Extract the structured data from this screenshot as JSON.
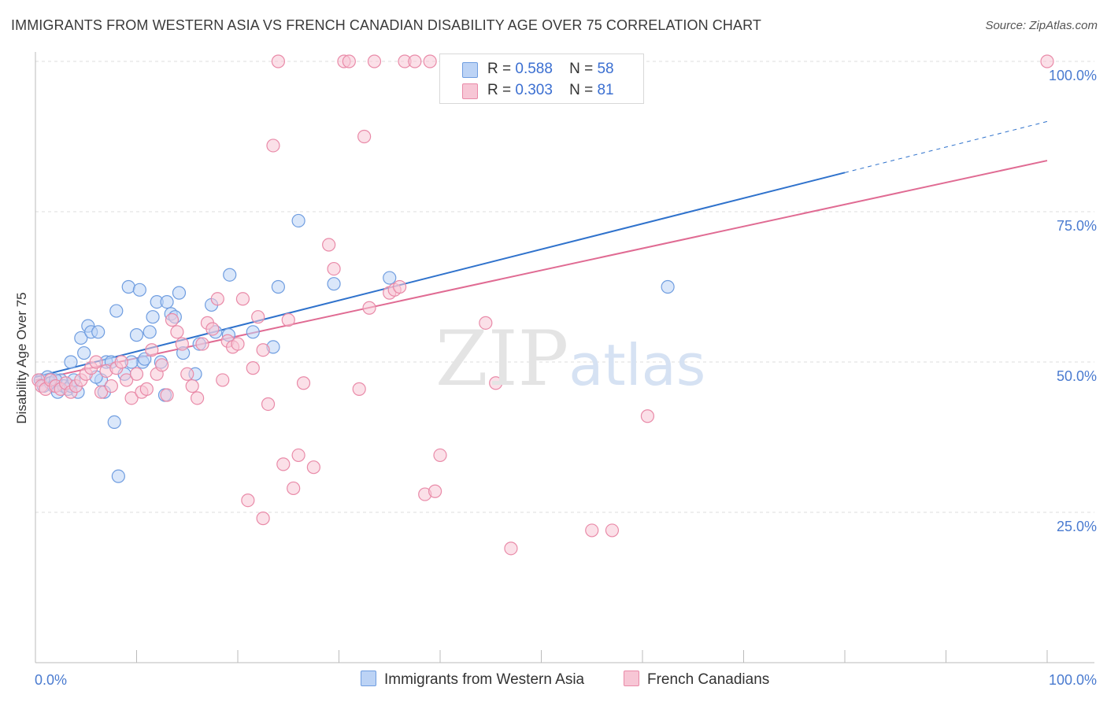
{
  "title": "IMMIGRANTS FROM WESTERN ASIA VS FRENCH CANADIAN DISABILITY AGE OVER 75 CORRELATION CHART",
  "source": "Source: ZipAtlas.com",
  "watermark": {
    "zip": "ZIP",
    "atlas": "atlas"
  },
  "colors": {
    "blue": "#6f9de0",
    "blue_fill": "#bcd3f5",
    "blue_line": "#2f72cc",
    "pink": "#e98aa8",
    "pink_fill": "#f7c6d5",
    "pink_line": "#e06b93",
    "tick_label": "#4a7bd0"
  },
  "legend": {
    "rows": [
      {
        "r_label": "R =",
        "r_value": "0.588",
        "n_label": "N =",
        "n_value": "58"
      },
      {
        "r_label": "R =",
        "r_value": "0.303",
        "n_label": "N =",
        "n_value": "81"
      }
    ]
  },
  "bottom_legend": [
    "Immigrants from Western Asia",
    "French Canadians"
  ],
  "chart_data": {
    "type": "scatter",
    "title": "IMMIGRANTS FROM WESTERN ASIA VS FRENCH CANADIAN DISABILITY AGE OVER 75 CORRELATION CHART",
    "xlabel": "",
    "ylabel": "Disability Age Over 75",
    "xlim": [
      0,
      100
    ],
    "ylim": [
      0,
      100
    ],
    "x_tick_labels": [
      "0.0%",
      "100.0%"
    ],
    "y_tick_labels": [
      "25.0%",
      "50.0%",
      "75.0%",
      "100.0%"
    ],
    "y_ticks": [
      25,
      50,
      75,
      100
    ],
    "grid": true,
    "legend_position": "top-center",
    "series": [
      {
        "name": "Immigrants from Western Asia",
        "R": 0.588,
        "N": 58,
        "trend": {
          "x0": 0,
          "y0": 47.5,
          "x1": 80,
          "y1": 81.5,
          "dashed_to": {
            "x": 100,
            "y": 90
          }
        },
        "points": [
          [
            0.5,
            47
          ],
          [
            0.8,
            46
          ],
          [
            1.2,
            47.5
          ],
          [
            1.5,
            46.5
          ],
          [
            1.8,
            46
          ],
          [
            2.2,
            45
          ],
          [
            2.5,
            47
          ],
          [
            2.8,
            46
          ],
          [
            3.2,
            45.5
          ],
          [
            3.5,
            46
          ],
          [
            3.5,
            50
          ],
          [
            3.8,
            47
          ],
          [
            4.2,
            45
          ],
          [
            4.5,
            54
          ],
          [
            4.8,
            51.5
          ],
          [
            5.2,
            56
          ],
          [
            5.5,
            55
          ],
          [
            6.2,
            55
          ],
          [
            6.5,
            47
          ],
          [
            6.8,
            45
          ],
          [
            7.0,
            50
          ],
          [
            7.5,
            50
          ],
          [
            7.8,
            40
          ],
          [
            8.0,
            58.5
          ],
          [
            8.2,
            31
          ],
          [
            8.8,
            48
          ],
          [
            9.2,
            62.5
          ],
          [
            10.0,
            54.5
          ],
          [
            10.3,
            62
          ],
          [
            10.6,
            50
          ],
          [
            10.8,
            50.5
          ],
          [
            11.3,
            55
          ],
          [
            11.6,
            57.5
          ],
          [
            12.0,
            60
          ],
          [
            12.4,
            50
          ],
          [
            12.8,
            44.5
          ],
          [
            13.0,
            60
          ],
          [
            13.4,
            58
          ],
          [
            13.8,
            57.5
          ],
          [
            14.2,
            61.5
          ],
          [
            14.6,
            51.5
          ],
          [
            15.8,
            48
          ],
          [
            16.2,
            53
          ],
          [
            17.4,
            59.5
          ],
          [
            17.8,
            55
          ],
          [
            19.1,
            54.5
          ],
          [
            19.2,
            64.5
          ],
          [
            21.5,
            55
          ],
          [
            23.5,
            52.5
          ],
          [
            24.0,
            62.5
          ],
          [
            26.0,
            73.5
          ],
          [
            29.5,
            63
          ],
          [
            35.0,
            64
          ],
          [
            41.8,
            100
          ],
          [
            62.5,
            62.5
          ],
          [
            2.0,
            47
          ],
          [
            9.5,
            50
          ],
          [
            6.0,
            47.5
          ]
        ]
      },
      {
        "name": "French Canadians",
        "R": 0.303,
        "N": 81,
        "trend": {
          "x0": 0,
          "y0": 47,
          "x1": 100,
          "y1": 83.5
        },
        "points": [
          [
            0.3,
            47
          ],
          [
            0.6,
            46
          ],
          [
            1.0,
            45.5
          ],
          [
            1.5,
            47
          ],
          [
            2.0,
            46
          ],
          [
            2.5,
            45.5
          ],
          [
            3.0,
            46.5
          ],
          [
            3.5,
            45
          ],
          [
            4.0,
            46
          ],
          [
            4.5,
            47
          ],
          [
            5.0,
            48
          ],
          [
            5.5,
            49
          ],
          [
            6.0,
            50
          ],
          [
            6.5,
            45
          ],
          [
            7.0,
            48.5
          ],
          [
            7.5,
            46
          ],
          [
            8.0,
            49
          ],
          [
            8.5,
            50
          ],
          [
            9.0,
            47
          ],
          [
            9.5,
            44
          ],
          [
            10.0,
            48
          ],
          [
            10.5,
            45
          ],
          [
            11.0,
            45.5
          ],
          [
            11.5,
            52
          ],
          [
            12.0,
            48
          ],
          [
            12.5,
            49.5
          ],
          [
            13.0,
            44.5
          ],
          [
            13.5,
            57
          ],
          [
            14.0,
            55
          ],
          [
            14.5,
            53
          ],
          [
            15.0,
            48
          ],
          [
            15.5,
            46
          ],
          [
            16.0,
            44
          ],
          [
            16.5,
            53
          ],
          [
            17.0,
            56.5
          ],
          [
            17.5,
            55.5
          ],
          [
            18.0,
            60.5
          ],
          [
            18.5,
            47
          ],
          [
            19.0,
            53.5
          ],
          [
            19.5,
            52.5
          ],
          [
            20.0,
            53
          ],
          [
            20.5,
            60.5
          ],
          [
            21.5,
            49
          ],
          [
            22.0,
            57.5
          ],
          [
            22.5,
            52
          ],
          [
            23.0,
            43
          ],
          [
            23.5,
            86
          ],
          [
            24.0,
            100
          ],
          [
            24.5,
            33
          ],
          [
            25.0,
            57
          ],
          [
            25.5,
            29
          ],
          [
            26.0,
            34.5
          ],
          [
            26.5,
            46.5
          ],
          [
            27.5,
            32.5
          ],
          [
            29.0,
            69.5
          ],
          [
            29.5,
            65.5
          ],
          [
            30.5,
            100
          ],
          [
            31.0,
            100
          ],
          [
            32.0,
            45.5
          ],
          [
            32.5,
            87.5
          ],
          [
            33.0,
            59
          ],
          [
            33.5,
            100
          ],
          [
            35.0,
            61.5
          ],
          [
            35.5,
            62
          ],
          [
            36.0,
            62.5
          ],
          [
            36.5,
            100
          ],
          [
            37.5,
            100
          ],
          [
            38.5,
            28
          ],
          [
            39.0,
            100
          ],
          [
            39.5,
            28.5
          ],
          [
            40.0,
            34.5
          ],
          [
            42.0,
            100
          ],
          [
            44.5,
            56.5
          ],
          [
            45.5,
            46.5
          ],
          [
            47.0,
            19
          ],
          [
            55.0,
            22
          ],
          [
            57.0,
            22
          ],
          [
            60.5,
            41
          ],
          [
            100,
            100
          ],
          [
            21.0,
            27
          ],
          [
            22.5,
            24
          ]
        ]
      }
    ]
  }
}
